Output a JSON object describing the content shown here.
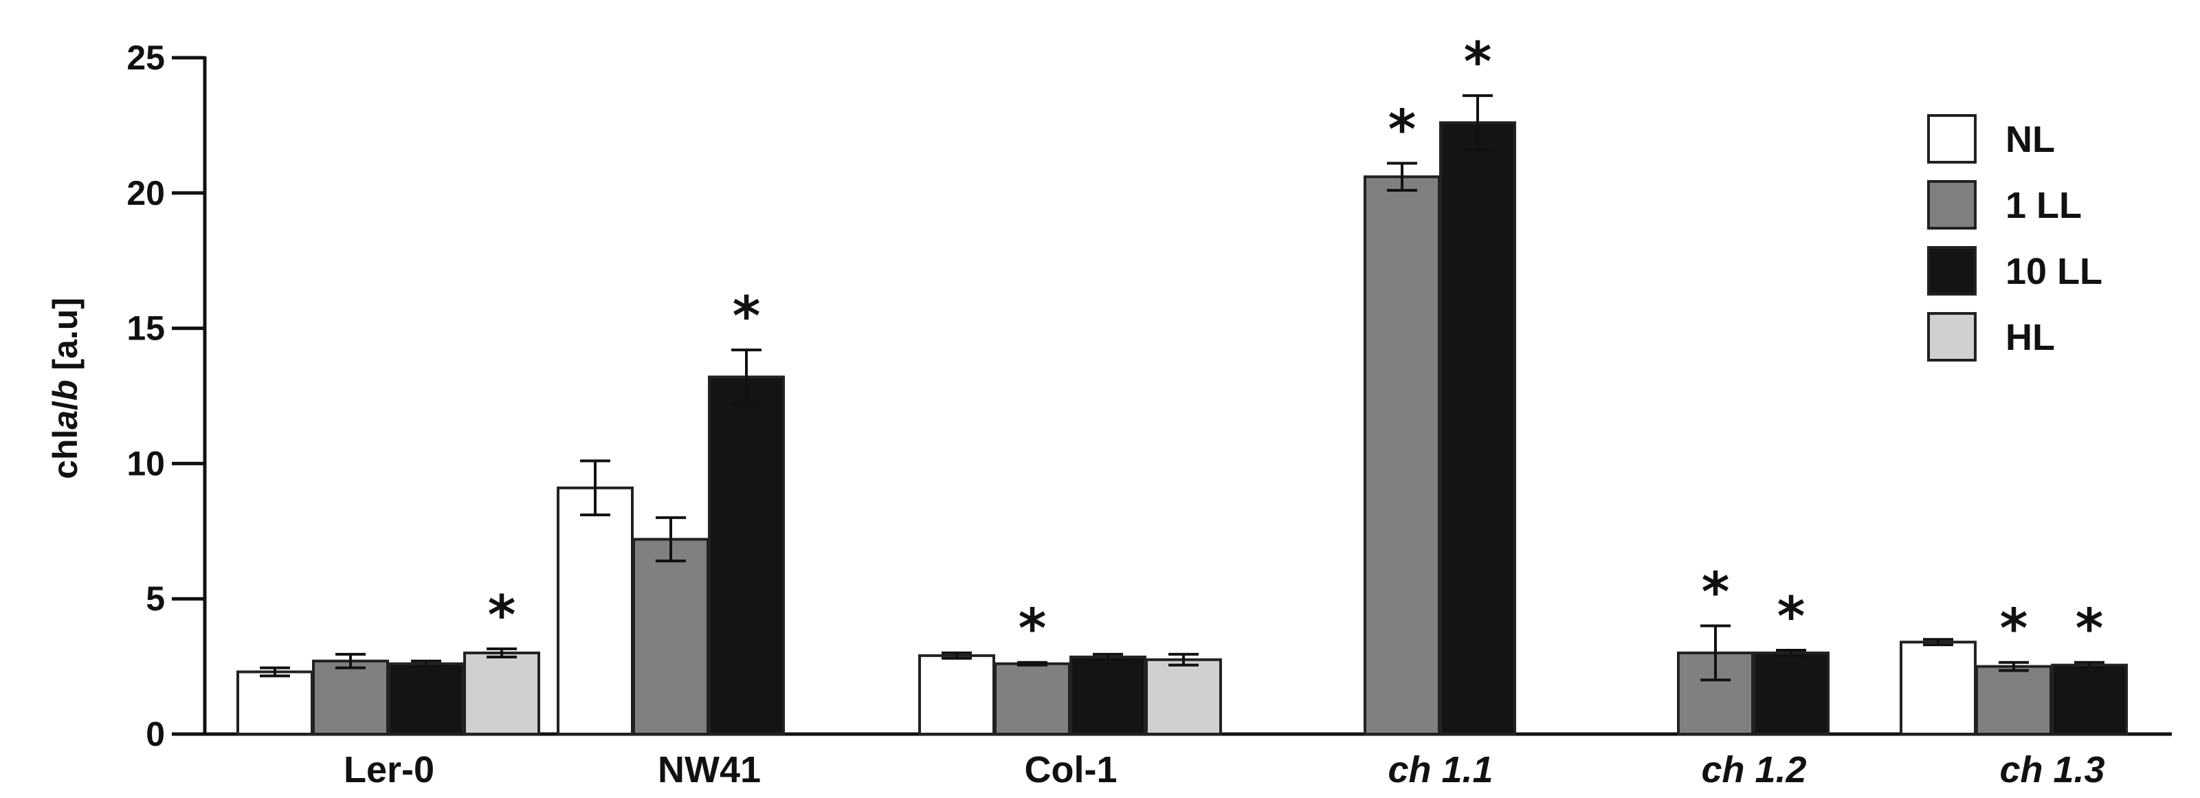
{
  "chart_data": {
    "type": "bar",
    "categories": [
      "Ler-0",
      "NW41",
      "Col-1",
      "ch 1.1",
      "ch 1.2",
      "ch 1.3"
    ],
    "italic_categories": [
      "ch 1.1",
      "ch 1.2",
      "ch 1.3"
    ],
    "ylabel_parts": [
      "chl",
      "a",
      "/",
      "b",
      " [a.u]"
    ],
    "ylabel_italic": [
      false,
      true,
      false,
      true,
      false
    ],
    "ylim": [
      0,
      25
    ],
    "yticks": [
      0,
      5,
      10,
      15,
      20,
      25
    ],
    "grid": false,
    "legend_position": "top-right",
    "series": [
      {
        "name": "NL",
        "color": "#ffffff",
        "values": [
          2.3,
          9.1,
          2.9,
          null,
          null,
          3.4
        ],
        "errors": [
          0.15,
          1.0,
          0.1,
          null,
          null,
          0.1
        ],
        "significant": [
          false,
          false,
          false,
          false,
          false,
          false
        ]
      },
      {
        "name": "1 LL",
        "color": "#808080",
        "values": [
          2.7,
          7.2,
          2.6,
          20.6,
          3.0,
          2.5
        ],
        "errors": [
          0.25,
          0.8,
          0.05,
          0.5,
          1.0,
          0.15
        ],
        "significant": [
          false,
          false,
          true,
          true,
          true,
          true
        ]
      },
      {
        "name": "10 LL",
        "color": "#141414",
        "values": [
          2.6,
          13.2,
          2.85,
          22.6,
          3.0,
          2.55
        ],
        "errors": [
          0.1,
          1.0,
          0.1,
          1.0,
          0.1,
          0.1
        ],
        "significant": [
          false,
          true,
          false,
          true,
          true,
          true
        ]
      },
      {
        "name": "HL",
        "color": "#d0d0d0",
        "values": [
          3.0,
          null,
          2.75,
          null,
          null,
          null
        ],
        "errors": [
          0.15,
          null,
          0.2,
          null,
          null,
          null
        ],
        "significant": [
          true,
          false,
          false,
          false,
          false,
          false
        ]
      }
    ],
    "significance_marker": "*"
  }
}
